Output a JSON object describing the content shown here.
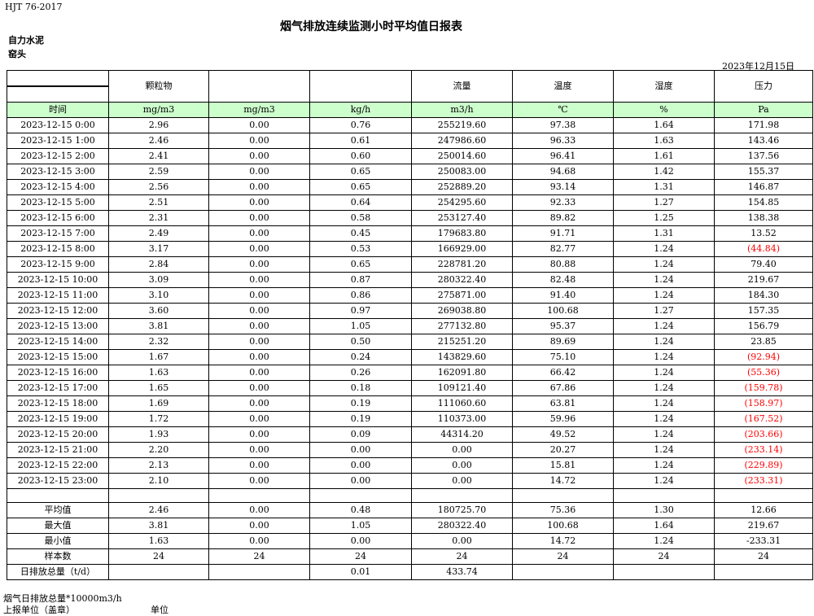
{
  "header": {
    "standard": "HJT  76-2017",
    "title": "烟气排放连续监测小时平均值日报表",
    "company": "自力水泥",
    "unit": "窑头",
    "date": "2023年12月15日"
  },
  "columns": [
    "",
    "颗粒物",
    "",
    "",
    "流量",
    "温度",
    "湿度",
    "压力"
  ],
  "units": [
    "时间",
    "mg/m3",
    "mg/m3",
    "kg/h",
    "m3/h",
    "℃",
    "%",
    "Pa"
  ],
  "colors": {
    "unit_row_bg": "#ccffcc",
    "negative": "#ff0000"
  },
  "rows": [
    [
      "2023-12-15 0:00",
      "2.96",
      "0.00",
      "0.76",
      "255219.60",
      "97.38",
      "1.64",
      "171.98"
    ],
    [
      "2023-12-15 1:00",
      "2.46",
      "0.00",
      "0.61",
      "247986.60",
      "96.33",
      "1.63",
      "143.46"
    ],
    [
      "2023-12-15 2:00",
      "2.41",
      "0.00",
      "0.60",
      "250014.60",
      "96.41",
      "1.61",
      "137.56"
    ],
    [
      "2023-12-15 3:00",
      "2.59",
      "0.00",
      "0.65",
      "250083.00",
      "94.68",
      "1.42",
      "155.37"
    ],
    [
      "2023-12-15 4:00",
      "2.56",
      "0.00",
      "0.65",
      "252889.20",
      "93.14",
      "1.31",
      "146.87"
    ],
    [
      "2023-12-15 5:00",
      "2.51",
      "0.00",
      "0.64",
      "254295.60",
      "92.33",
      "1.27",
      "154.85"
    ],
    [
      "2023-12-15 6:00",
      "2.31",
      "0.00",
      "0.58",
      "253127.40",
      "89.82",
      "1.25",
      "138.38"
    ],
    [
      "2023-12-15 7:00",
      "2.49",
      "0.00",
      "0.45",
      "179683.80",
      "91.71",
      "1.31",
      "13.52"
    ],
    [
      "2023-12-15 8:00",
      "3.17",
      "0.00",
      "0.53",
      "166929.00",
      "82.77",
      "1.24",
      "(44.84)"
    ],
    [
      "2023-12-15 9:00",
      "2.84",
      "0.00",
      "0.65",
      "228781.20",
      "80.88",
      "1.24",
      "79.40"
    ],
    [
      "2023-12-15 10:00",
      "3.09",
      "0.00",
      "0.87",
      "280322.40",
      "82.48",
      "1.24",
      "219.67"
    ],
    [
      "2023-12-15 11:00",
      "3.10",
      "0.00",
      "0.86",
      "275871.00",
      "91.40",
      "1.24",
      "184.30"
    ],
    [
      "2023-12-15 12:00",
      "3.60",
      "0.00",
      "0.97",
      "269038.80",
      "100.68",
      "1.27",
      "157.35"
    ],
    [
      "2023-12-15 13:00",
      "3.81",
      "0.00",
      "1.05",
      "277132.80",
      "95.37",
      "1.24",
      "156.79"
    ],
    [
      "2023-12-15 14:00",
      "2.32",
      "0.00",
      "0.50",
      "215251.20",
      "89.69",
      "1.24",
      "23.85"
    ],
    [
      "2023-12-15 15:00",
      "1.67",
      "0.00",
      "0.24",
      "143829.60",
      "75.10",
      "1.24",
      "(92.94)"
    ],
    [
      "2023-12-15 16:00",
      "1.63",
      "0.00",
      "0.26",
      "162091.80",
      "66.42",
      "1.24",
      "(55.36)"
    ],
    [
      "2023-12-15 17:00",
      "1.65",
      "0.00",
      "0.18",
      "109121.40",
      "67.86",
      "1.24",
      "(159.78)"
    ],
    [
      "2023-12-15 18:00",
      "1.69",
      "0.00",
      "0.19",
      "111060.60",
      "63.81",
      "1.24",
      "(158.97)"
    ],
    [
      "2023-12-15 19:00",
      "1.72",
      "0.00",
      "0.19",
      "110373.00",
      "59.96",
      "1.24",
      "(167.52)"
    ],
    [
      "2023-12-15 20:00",
      "1.93",
      "0.00",
      "0.09",
      "44314.20",
      "49.52",
      "1.24",
      "(203.66)"
    ],
    [
      "2023-12-15 21:00",
      "2.20",
      "0.00",
      "0.00",
      "0.00",
      "20.27",
      "1.24",
      "(233.14)"
    ],
    [
      "2023-12-15 22:00",
      "2.13",
      "0.00",
      "0.00",
      "0.00",
      "15.81",
      "1.24",
      "(229.89)"
    ],
    [
      "2023-12-15 23:00",
      "2.10",
      "0.00",
      "0.00",
      "0.00",
      "14.72",
      "1.24",
      "(233.31)"
    ]
  ],
  "stats": [
    [
      "平均值",
      "2.46",
      "0.00",
      "0.48",
      "180725.70",
      "75.36",
      "1.30",
      "12.66"
    ],
    [
      "最大值",
      "3.81",
      "0.00",
      "1.05",
      "280322.40",
      "100.68",
      "1.64",
      "219.67"
    ],
    [
      "最小值",
      "1.63",
      "0.00",
      "0.00",
      "0.00",
      "14.72",
      "1.24",
      "-233.31"
    ],
    [
      "样本数",
      "24",
      "24",
      "24",
      "24",
      "24",
      "24",
      "24"
    ],
    [
      "日排放总量（t/d）",
      "",
      "",
      "0.01",
      "433.74",
      "",
      "",
      ""
    ]
  ],
  "footer": {
    "note": "烟气日排放总量*10000m3/h",
    "reporter": "上报单位（盖章）",
    "reporter_unit": "单位"
  }
}
